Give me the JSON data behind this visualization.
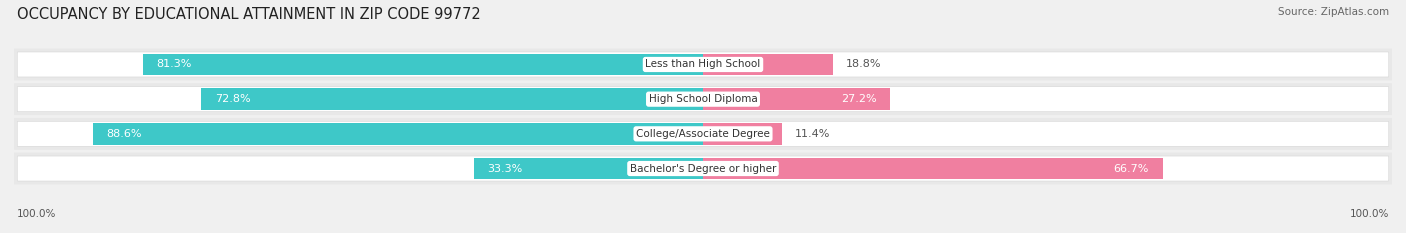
{
  "title": "OCCUPANCY BY EDUCATIONAL ATTAINMENT IN ZIP CODE 99772",
  "source": "Source: ZipAtlas.com",
  "categories": [
    "Less than High School",
    "High School Diploma",
    "College/Associate Degree",
    "Bachelor's Degree or higher"
  ],
  "owner_pct": [
    81.3,
    72.8,
    88.6,
    33.3
  ],
  "renter_pct": [
    18.8,
    27.2,
    11.4,
    66.7
  ],
  "owner_color": "#3ec8c8",
  "renter_color": "#f07fa0",
  "bg_color": "#f0f0f0",
  "bar_bg_color": "#ffffff",
  "row_bg_color": "#e8e8e8",
  "title_fontsize": 10.5,
  "source_fontsize": 7.5,
  "label_fontsize": 8,
  "cat_fontsize": 7.5,
  "axis_label_fontsize": 7.5,
  "legend_fontsize": 8,
  "bar_height": 0.62,
  "renter_label_threshold": 20
}
